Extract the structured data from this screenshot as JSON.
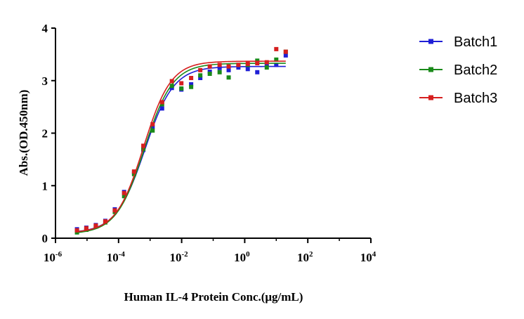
{
  "chart_data": {
    "type": "scatter",
    "xlabel": "Human IL-4 Protein Conc.(μg/mL)",
    "ylabel": "Abs.(OD.450nm)",
    "xscale": "log",
    "xlim": [
      1e-06,
      10000
    ],
    "ylim": [
      0,
      4
    ],
    "x_ticks": [
      {
        "base": "10",
        "exp": "-6",
        "value": 1e-06
      },
      {
        "base": "10",
        "exp": "-4",
        "value": 0.0001
      },
      {
        "base": "10",
        "exp": "-2",
        "value": 0.01
      },
      {
        "base": "10",
        "exp": "0",
        "value": 1
      },
      {
        "base": "10",
        "exp": "2",
        "value": 100
      },
      {
        "base": "10",
        "exp": "4",
        "value": 10000
      }
    ],
    "y_ticks": [
      "0",
      "1",
      "2",
      "3",
      "4"
    ],
    "grid": false,
    "legend_position": "top-right",
    "x": [
      4.8e-06,
      9.5e-06,
      1.9e-05,
      3.8e-05,
      7.6e-05,
      0.00015,
      0.00031,
      0.00061,
      0.0012,
      0.0024,
      0.0049,
      0.0098,
      0.02,
      0.039,
      0.078,
      0.16,
      0.31,
      0.63,
      1.25,
      2.5,
      5,
      10,
      20
    ],
    "series": [
      {
        "name": "Batch1",
        "color": "#1f1fd6",
        "marker": "square",
        "values": [
          0.17,
          0.2,
          0.25,
          0.33,
          0.55,
          0.88,
          1.25,
          1.68,
          2.12,
          2.47,
          2.86,
          2.83,
          2.93,
          3.05,
          3.17,
          3.24,
          3.2,
          3.25,
          3.22,
          3.16,
          3.32,
          3.3,
          3.48
        ],
        "fit": {
          "bottom": 0.1,
          "top": 3.27,
          "ec50": 0.00068,
          "hill": 0.95
        }
      },
      {
        "name": "Batch2",
        "color": "#1a8a1a",
        "marker": "square",
        "values": [
          0.11,
          0.16,
          0.22,
          0.3,
          0.5,
          0.8,
          1.22,
          1.7,
          2.05,
          2.55,
          2.9,
          2.85,
          2.88,
          3.1,
          3.13,
          3.16,
          3.06,
          3.3,
          3.3,
          3.38,
          3.25,
          3.4,
          3.55
        ],
        "fit": {
          "bottom": 0.08,
          "top": 3.33,
          "ec50": 0.00066,
          "hill": 0.97
        }
      },
      {
        "name": "Batch3",
        "color": "#d61f1f",
        "marker": "square",
        "values": [
          0.15,
          0.19,
          0.24,
          0.32,
          0.53,
          0.86,
          1.27,
          1.76,
          2.17,
          2.59,
          2.99,
          2.95,
          3.05,
          3.2,
          3.27,
          3.3,
          3.27,
          3.3,
          3.32,
          3.33,
          3.35,
          3.6,
          3.55
        ],
        "fit": {
          "bottom": 0.1,
          "top": 3.37,
          "ec50": 0.00062,
          "hill": 1.0
        }
      }
    ]
  }
}
